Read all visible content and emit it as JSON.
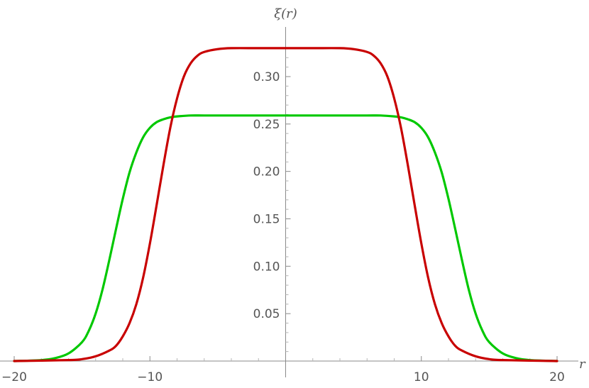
{
  "chart_data": {
    "type": "line",
    "title": "",
    "xlabel": "r",
    "ylabel": "ξ(r)",
    "xlim": [
      -20,
      20
    ],
    "ylim": [
      0,
      0.34
    ],
    "x_ticks": [
      -20,
      -10,
      10,
      20
    ],
    "x_tick_labels": [
      "−20",
      "−10",
      "10",
      "20"
    ],
    "y_ticks": [
      0.05,
      0.1,
      0.15,
      0.2,
      0.25,
      0.3
    ],
    "y_tick_labels": [
      "0.05",
      "0.10",
      "0.15",
      "0.20",
      "0.25",
      "0.30"
    ],
    "grid": false,
    "legend": "none",
    "series": [
      {
        "color": "#00c800",
        "x": [
          -20,
          -18,
          -17,
          -16,
          -15,
          -14.5,
          -14,
          -13.5,
          -13,
          -12.5,
          -12,
          -11.5,
          -11,
          -10.5,
          -10,
          -9.5,
          -9,
          -8.5,
          -8,
          -7,
          -6,
          -4,
          -2,
          0,
          2,
          4,
          6,
          7,
          8,
          8.5,
          9,
          9.5,
          10,
          10.5,
          11,
          11.5,
          12,
          12.5,
          13,
          13.5,
          14,
          14.5,
          15,
          16,
          17,
          18,
          20
        ],
        "y": [
          0.0,
          0.001,
          0.003,
          0.008,
          0.02,
          0.032,
          0.05,
          0.075,
          0.106,
          0.139,
          0.171,
          0.199,
          0.22,
          0.236,
          0.246,
          0.252,
          0.255,
          0.257,
          0.258,
          0.259,
          0.259,
          0.259,
          0.259,
          0.259,
          0.259,
          0.259,
          0.259,
          0.259,
          0.258,
          0.257,
          0.255,
          0.252,
          0.246,
          0.236,
          0.22,
          0.199,
          0.171,
          0.139,
          0.106,
          0.075,
          0.05,
          0.032,
          0.02,
          0.008,
          0.003,
          0.001,
          0.0
        ]
      },
      {
        "color": "#c80000",
        "x": [
          -20,
          -16,
          -15,
          -14,
          -13,
          -12.5,
          -12,
          -11.5,
          -11,
          -10.5,
          -10,
          -9.5,
          -9,
          -8.5,
          -8,
          -7.5,
          -7,
          -6.5,
          -6,
          -5,
          -4,
          -2,
          0,
          2,
          4,
          5,
          6,
          6.5,
          7,
          7.5,
          8,
          8.5,
          9,
          9.5,
          10,
          10.5,
          11,
          11.5,
          12,
          12.5,
          13,
          14,
          15,
          16,
          20
        ],
        "y": [
          0.0,
          0.001,
          0.002,
          0.005,
          0.011,
          0.016,
          0.026,
          0.04,
          0.06,
          0.088,
          0.124,
          0.165,
          0.207,
          0.246,
          0.277,
          0.3,
          0.314,
          0.322,
          0.326,
          0.329,
          0.33,
          0.33,
          0.33,
          0.33,
          0.33,
          0.329,
          0.326,
          0.322,
          0.314,
          0.3,
          0.277,
          0.246,
          0.207,
          0.165,
          0.124,
          0.088,
          0.06,
          0.04,
          0.026,
          0.016,
          0.011,
          0.005,
          0.002,
          0.001,
          0.0
        ]
      }
    ]
  }
}
